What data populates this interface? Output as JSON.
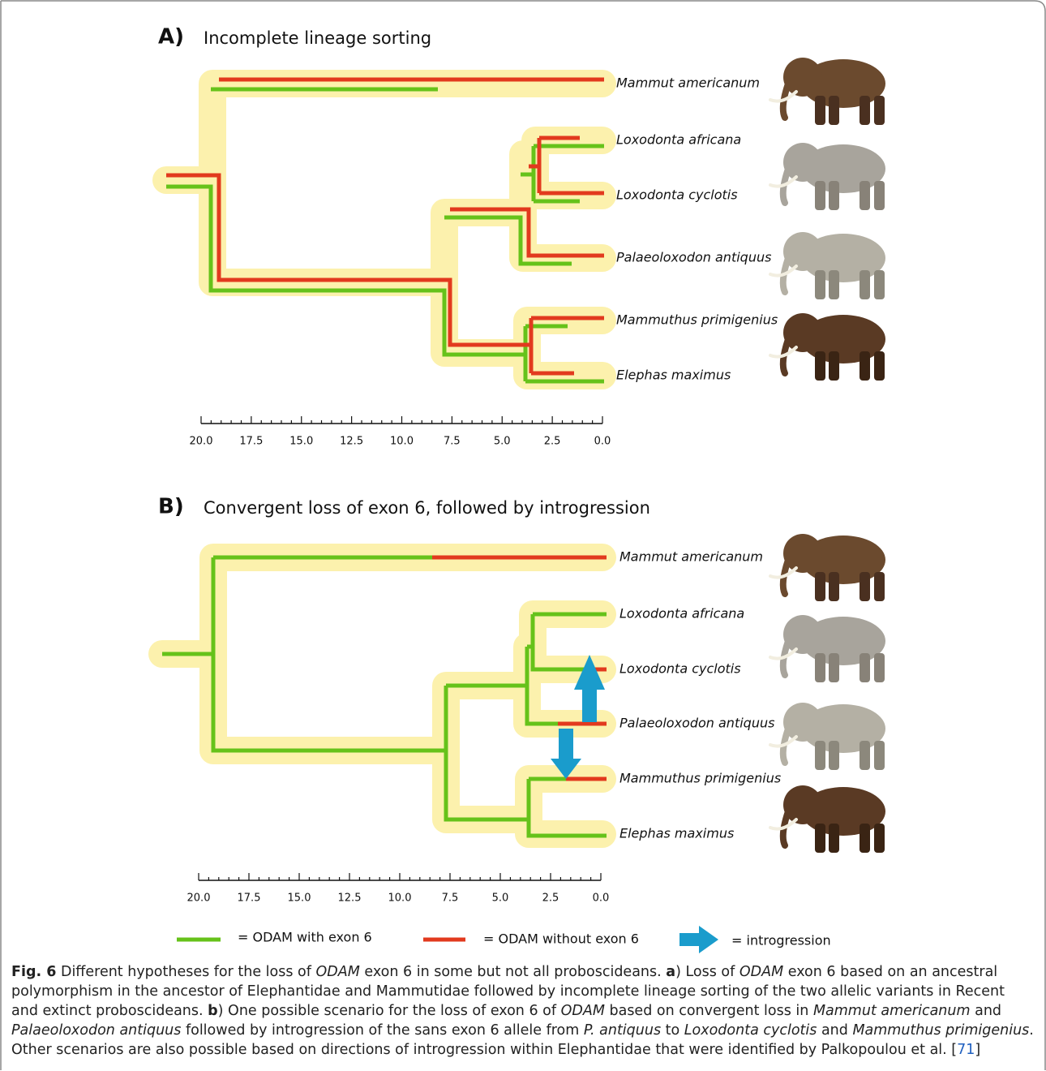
{
  "panels": [
    {
      "label": "A)",
      "title": "Incomplete lineage sorting",
      "taxa": [
        "Mammut americanum",
        "Loxodonta africana",
        "Loxodonta cyclotis",
        "Palaeoloxodon antiquus",
        "Mammuthus primigenius",
        "Elephas maximus"
      ],
      "axis_ticks": [
        "20.0",
        "17.5",
        "15.0",
        "12.5",
        "10.0",
        "7.5",
        "5.0",
        "2.5",
        "0.0"
      ]
    },
    {
      "label": "B)",
      "title": "Convergent loss of exon 6, followed by introgression",
      "taxa": [
        "Mammut americanum",
        "Loxodonta africana",
        "Loxodonta cyclotis",
        "Palaeoloxodon antiquus",
        "Mammuthus primigenius",
        "Elephas maximus"
      ],
      "axis_ticks": [
        "20.0",
        "17.5",
        "15.0",
        "12.5",
        "10.0",
        "7.5",
        "5.0",
        "2.5",
        "0.0"
      ]
    }
  ],
  "legend": [
    "= ODAM with exon 6",
    "= ODAM without exon 6",
    "= introgression"
  ],
  "caption": [
    "Fig. 6",
    " Different hypotheses for the loss of ",
    "ODAM",
    " exon 6 in some but not all proboscideans. ",
    "a",
    ") Loss of ",
    "ODAM",
    " exon 6 based on an ancestral polymorphism in the ancestor of Elephantidae and Mammutidae followed by incomplete lineage sorting of the two allelic variants in Recent and extinct proboscideans. ",
    "b",
    ") One possible scenario for the loss of exon 6 of ",
    "ODAM",
    " based on convergent loss in ",
    "Mammut americanum",
    " and ",
    "Palaeoloxodon antiquus",
    " followed by introgression of the sans exon 6 allele from ",
    "P. antiquus",
    " to ",
    "Loxodonta cyclotis",
    " and ",
    "Mammuthus primigenius",
    ". Other scenarios are also possible based on directions of introgression within Elephantidae that were identified by Palkopoulou et al. [",
    "71",
    "]"
  ]
}
